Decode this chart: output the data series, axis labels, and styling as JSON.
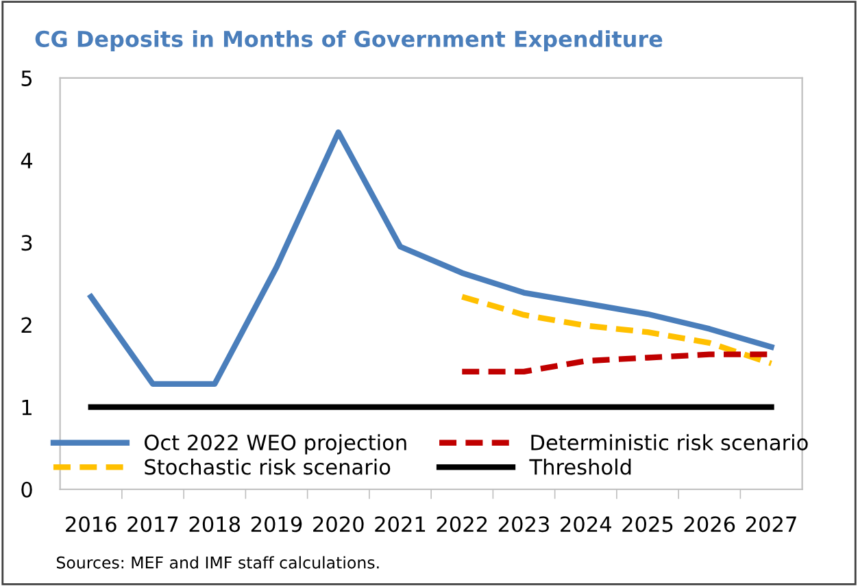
{
  "chart_data": {
    "type": "line",
    "title": "CG Deposits in Months of Government Expenditure",
    "categories": [
      "2016",
      "2017",
      "2018",
      "2019",
      "2020",
      "2021",
      "2022",
      "2023",
      "2024",
      "2025",
      "2026",
      "2027"
    ],
    "series": [
      {
        "name": "Oct 2022 WEO projection",
        "color": "#4a7ebb",
        "line_style": "solid",
        "values": [
          2.34,
          1.28,
          1.28,
          2.7,
          4.34,
          2.95,
          2.63,
          2.39,
          2.26,
          2.13,
          1.95,
          1.73
        ]
      },
      {
        "name": "Stochastic risk scenario",
        "color": "#ffc000",
        "line_style": "dashed",
        "values": [
          null,
          null,
          null,
          null,
          null,
          null,
          2.34,
          2.12,
          1.99,
          1.91,
          1.78,
          1.53
        ]
      },
      {
        "name": "Deterministic risk scenario",
        "color": "#c00000",
        "line_style": "dashed",
        "values": [
          null,
          null,
          null,
          null,
          null,
          null,
          1.43,
          1.43,
          1.56,
          1.6,
          1.64,
          1.64
        ]
      },
      {
        "name": "Threshold",
        "color": "#000000",
        "line_style": "solid",
        "values": [
          1,
          1,
          1,
          1,
          1,
          1,
          1,
          1,
          1,
          1,
          1,
          1
        ]
      }
    ],
    "ylim": [
      0,
      5
    ],
    "yticks": [
      0,
      1,
      2,
      3,
      4,
      5
    ],
    "grid": false,
    "legend": "bottom",
    "marker": "none",
    "annotations": [
      "Sources: MEF and IMF staff calculations."
    ]
  }
}
